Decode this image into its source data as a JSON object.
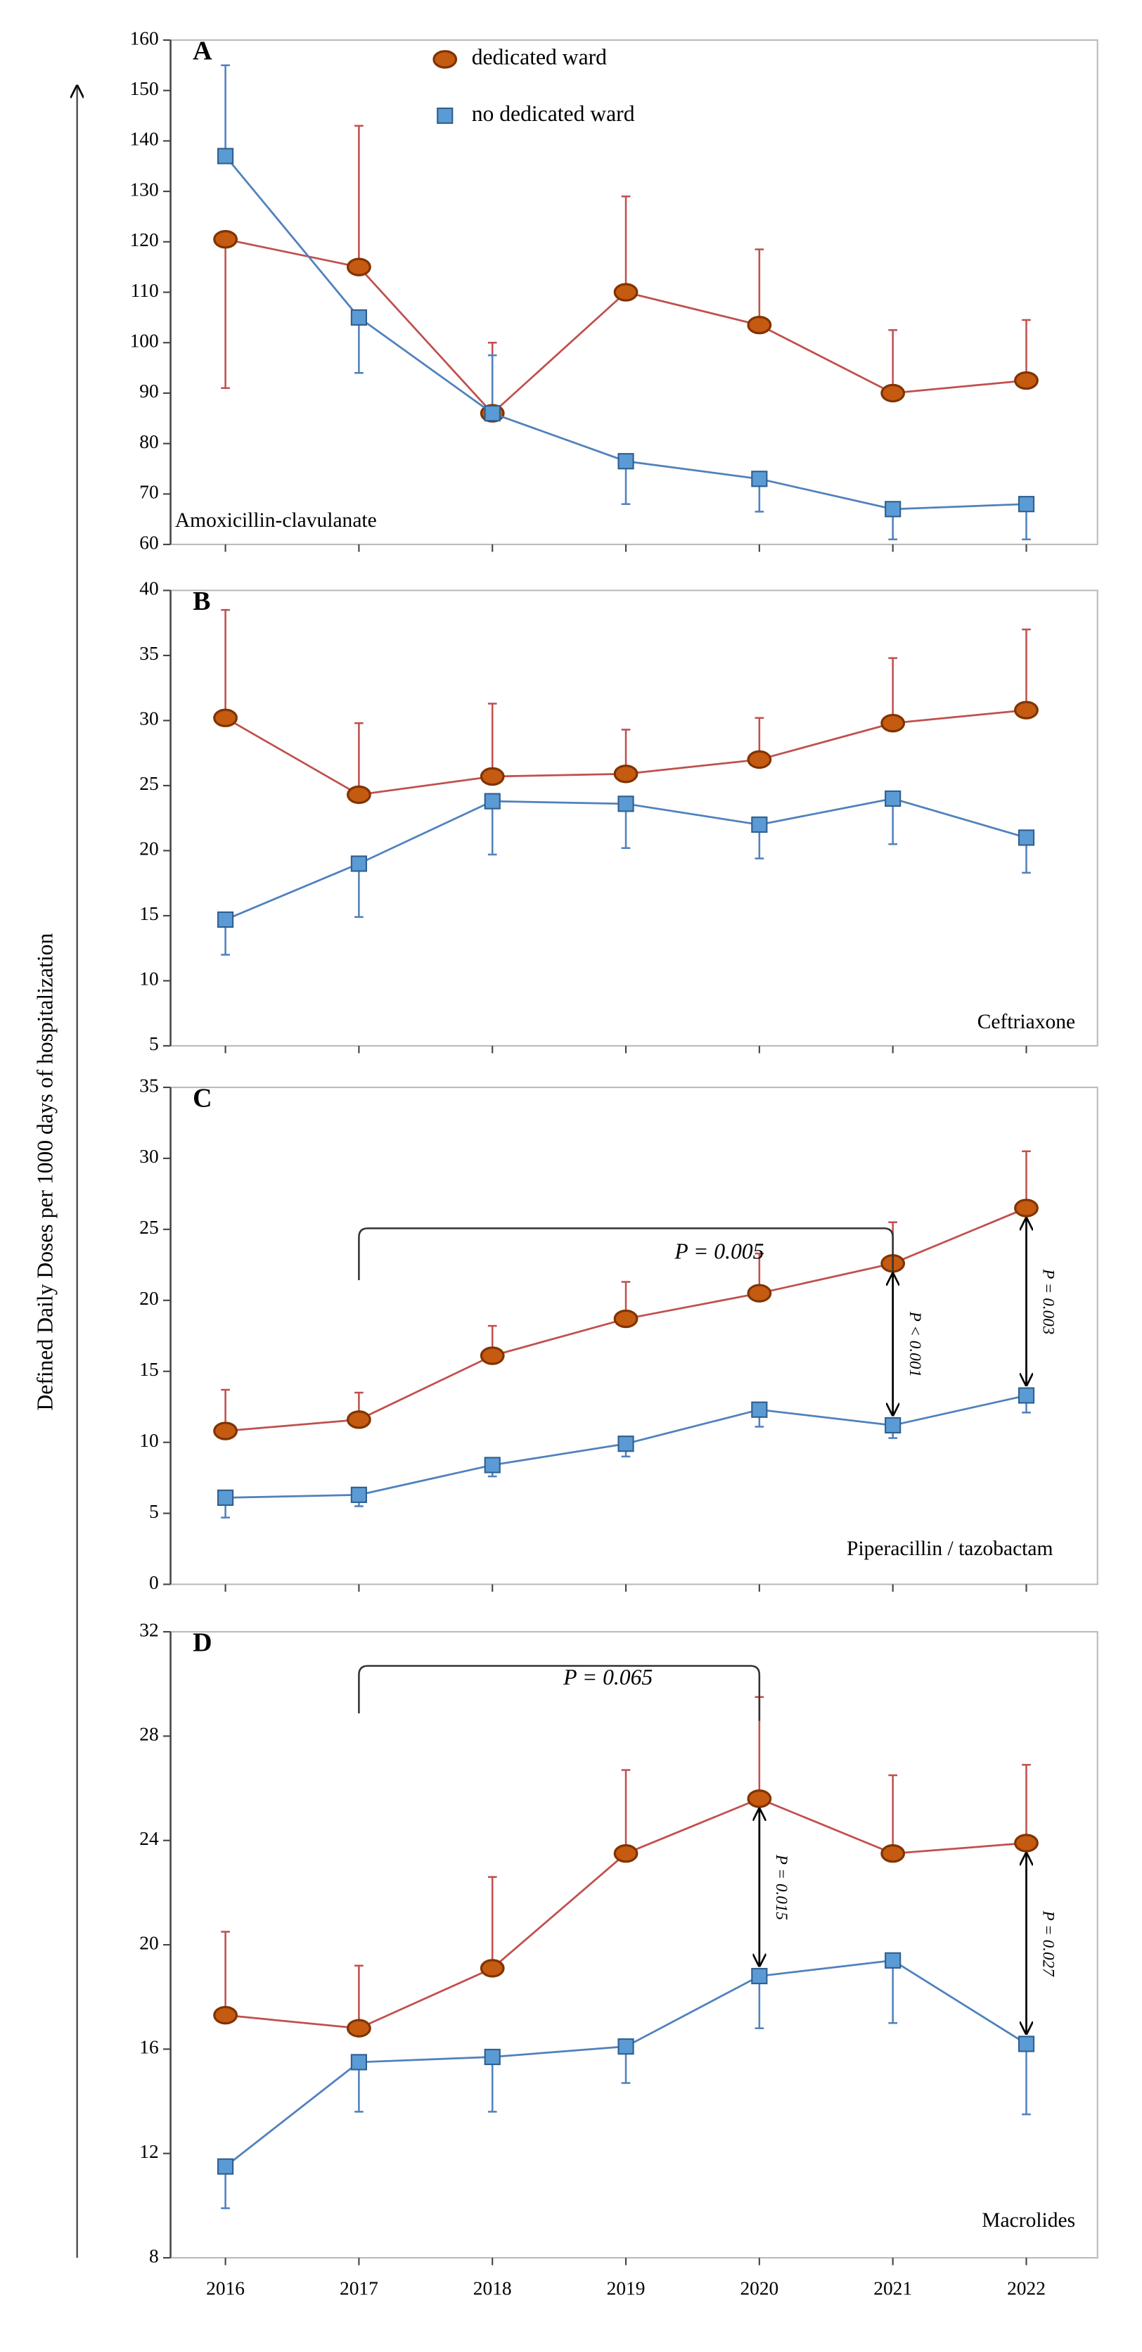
{
  "chart_data": [
    {
      "type": "line",
      "panel": "A",
      "name": "Amoxicillin-clavulanate",
      "ylabel": "Defined Daily  Doses per 1000  days of hospitalization",
      "ylim": [
        60,
        160
      ],
      "yticks": [
        60,
        70,
        80,
        90,
        100,
        110,
        120,
        130,
        140,
        150,
        160
      ],
      "series": [
        {
          "name": "dedicated ward",
          "color": "#c0504d",
          "marker_color": "#c55a11",
          "values": [
            120.5,
            115,
            86,
            110,
            103.5,
            90,
            92.5
          ],
          "errors": [
            29.5,
            28,
            14,
            19,
            15,
            12.5,
            12
          ]
        },
        {
          "name": "no dedicated ward",
          "color": "#4f81bd",
          "marker_color": "#5b9bd5",
          "values": [
            137,
            105,
            86,
            76.5,
            73,
            67,
            68
          ],
          "errors": [
            18,
            11,
            11.5,
            8.5,
            6.5,
            6,
            7
          ]
        }
      ]
    },
    {
      "type": "line",
      "panel": "B",
      "name": "Ceftriaxone",
      "ylim": [
        5,
        40
      ],
      "yticks": [
        5,
        10,
        15,
        20,
        25,
        30,
        35,
        40
      ],
      "series": [
        {
          "color": "#c0504d",
          "marker_color": "#c55a11",
          "values": [
            30.2,
            24.3,
            25.7,
            25.9,
            27,
            29.8,
            30.8
          ],
          "errors": [
            8.3,
            5.5,
            5.6,
            3.4,
            3.2,
            5,
            6.2
          ]
        },
        {
          "color": "#4f81bd",
          "marker_color": "#5b9bd5",
          "values": [
            14.7,
            19,
            23.8,
            23.6,
            22,
            24,
            21
          ],
          "errors": [
            2.7,
            4.1,
            4.1,
            3.4,
            2.6,
            3.5,
            2.7
          ]
        }
      ]
    },
    {
      "type": "line",
      "panel": "C",
      "name": "Piperacillin  / tazobactam",
      "ylim": [
        0,
        35
      ],
      "yticks": [
        0,
        5,
        10,
        15,
        20,
        25,
        30,
        35
      ],
      "annotations": [
        "P = 0.005",
        "P < 0.001",
        "P = 0.003"
      ],
      "series": [
        {
          "color": "#c0504d",
          "marker_color": "#c55a11",
          "values": [
            10.8,
            11.6,
            16.1,
            18.7,
            20.5,
            22.6,
            26.5
          ],
          "errors": [
            2.9,
            1.9,
            2.1,
            2.6,
            2.8,
            2.9,
            4
          ]
        },
        {
          "color": "#4f81bd",
          "marker_color": "#5b9bd5",
          "values": [
            6.1,
            6.3,
            8.4,
            9.9,
            12.3,
            11.2,
            13.3
          ],
          "errors": [
            1.4,
            0.8,
            0.8,
            0.9,
            1.2,
            0.9,
            1.2
          ]
        }
      ]
    },
    {
      "type": "line",
      "panel": "D",
      "name": "Macrolides",
      "ylim": [
        8,
        32
      ],
      "yticks": [
        8,
        12,
        16,
        20,
        24,
        28,
        32
      ],
      "annotations": [
        "P = 0.065",
        "P = 0.015",
        "P = 0.027"
      ],
      "categories": [
        "2016",
        "2017",
        "2018",
        "2019",
        "2020",
        "2021",
        "2022"
      ],
      "series": [
        {
          "color": "#c0504d",
          "marker_color": "#c55a11",
          "values": [
            17.3,
            16.8,
            19.1,
            23.5,
            25.6,
            23.5,
            23.9
          ],
          "errors": [
            3.2,
            2.4,
            3.5,
            3.2,
            3.9,
            3,
            3
          ]
        },
        {
          "color": "#4f81bd",
          "marker_color": "#5b9bd5",
          "values": [
            11.5,
            15.5,
            15.7,
            16.1,
            18.8,
            19.4,
            16.2
          ],
          "errors": [
            1.6,
            1.9,
            2.1,
            1.4,
            2,
            2.4,
            2.7
          ]
        }
      ]
    }
  ]
}
